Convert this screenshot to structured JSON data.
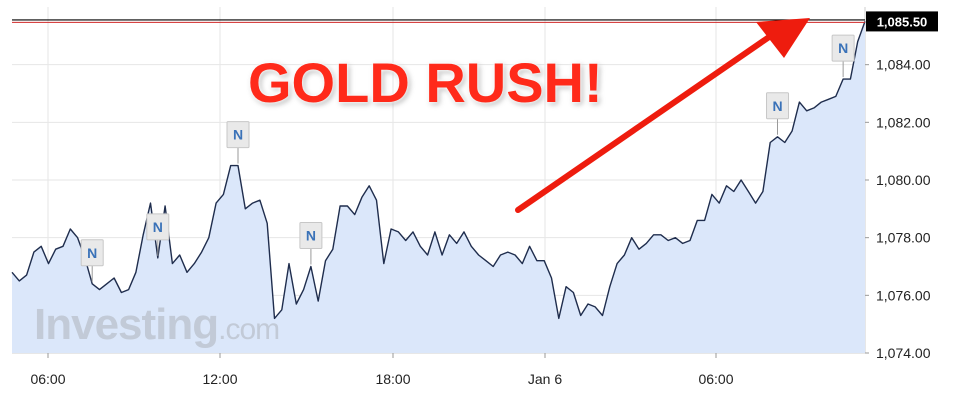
{
  "headline": "GOLD RUSH!",
  "watermark": {
    "brand": "Investing",
    "suffix": ".com"
  },
  "colors": {
    "line": "#1f2d4d",
    "area": "#dbe7fa",
    "grid": "#e6e6e6",
    "annotation_arrow": "#ee1c0e",
    "news_marker": "#3a72b8",
    "price_tag_bg": "#000000"
  },
  "icons": {
    "news_marker": "news-marker-icon",
    "arrow": "arrow-icon"
  },
  "news_marker_label": "N",
  "chart_data": {
    "type": "area",
    "title": "",
    "xlabel": "",
    "ylabel": "",
    "ylim": [
      1074.0,
      1086.0
    ],
    "y_ticks": [
      "1,074.00",
      "1,076.00",
      "1,078.00",
      "1,080.00",
      "1,082.00",
      "1,084.00"
    ],
    "x_ticks": [
      "06:00",
      "12:00",
      "18:00",
      "Jan 6",
      "06:00"
    ],
    "last_price_label": "1,085.50",
    "last_price": 1085.5,
    "grid": true,
    "legend": "none",
    "series": [
      {
        "values": [
          1076.8,
          1076.5,
          1076.7,
          1077.5,
          1077.7,
          1077.1,
          1077.6,
          1077.7,
          1078.3,
          1078.0,
          1077.3,
          1076.4,
          1076.2,
          1076.4,
          1076.6,
          1076.1,
          1076.2,
          1076.8,
          1078.1,
          1079.2,
          1077.3,
          1079.1,
          1077.1,
          1077.4,
          1076.8,
          1077.1,
          1077.5,
          1078.0,
          1079.2,
          1079.5,
          1080.5,
          1080.5,
          1079.0,
          1079.2,
          1079.3,
          1078.5,
          1075.2,
          1075.5,
          1077.1,
          1075.7,
          1076.2,
          1077.0,
          1075.8,
          1077.2,
          1077.6,
          1079.1,
          1079.1,
          1078.8,
          1079.4,
          1079.8,
          1079.3,
          1077.1,
          1078.3,
          1078.2,
          1077.9,
          1078.2,
          1077.7,
          1077.4,
          1078.2,
          1077.4,
          1078.1,
          1077.8,
          1078.2,
          1077.7,
          1077.4,
          1077.2,
          1077.0,
          1077.4,
          1077.5,
          1077.4,
          1077.1,
          1077.7,
          1077.2,
          1077.2,
          1076.6,
          1075.2,
          1076.3,
          1076.1,
          1075.3,
          1075.7,
          1075.6,
          1075.3,
          1076.3,
          1077.1,
          1077.4,
          1078.0,
          1077.6,
          1077.8,
          1078.1,
          1078.1,
          1077.9,
          1078.0,
          1077.8,
          1077.9,
          1078.6,
          1078.6,
          1079.5,
          1079.2,
          1079.8,
          1079.6,
          1080.0,
          1079.6,
          1079.2,
          1079.6,
          1081.3,
          1081.5,
          1081.3,
          1081.7,
          1082.7,
          1082.4,
          1082.5,
          1082.7,
          1082.8,
          1082.9,
          1083.5,
          1083.5,
          1084.8,
          1085.5
        ]
      }
    ]
  }
}
